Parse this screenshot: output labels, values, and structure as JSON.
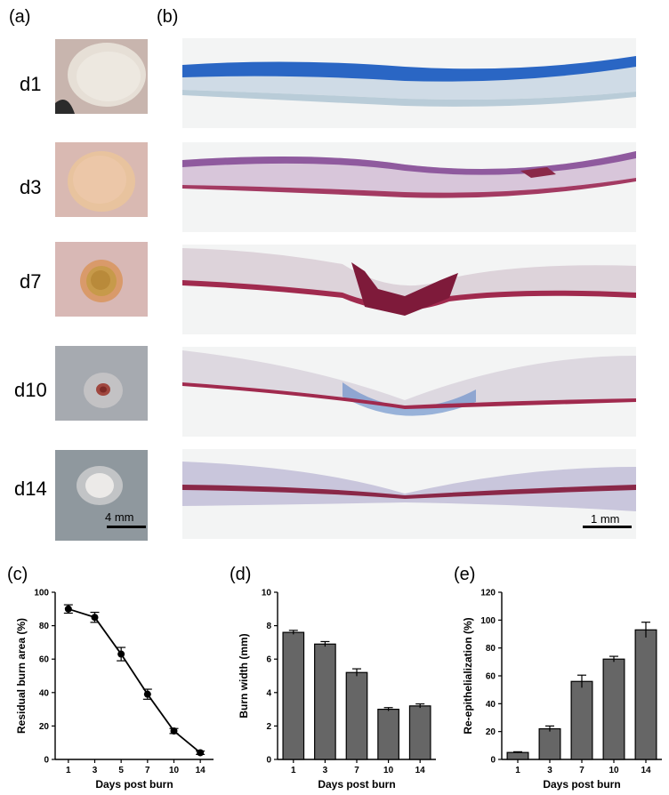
{
  "panels": {
    "a": "(a)",
    "b": "(b)",
    "c": "(c)",
    "d": "(d)",
    "e": "(e)"
  },
  "days": [
    "d1",
    "d3",
    "d7",
    "d10",
    "d14"
  ],
  "scalebars": {
    "photo": "4 mm",
    "histo": "1 mm"
  },
  "colors": {
    "bar_fill": "#666666",
    "line": "#000000"
  },
  "chart_data": [
    {
      "type": "line",
      "panel": "(c)",
      "categories": [
        "1",
        "3",
        "5",
        "7",
        "10",
        "14"
      ],
      "values": [
        90,
        85,
        63,
        39,
        17,
        4
      ],
      "errors": [
        2.5,
        3,
        4,
        3,
        1.5,
        1
      ],
      "xlabel": "Days post burn",
      "ylabel": "Residual burn area (%)",
      "ylim": [
        0,
        100
      ],
      "yticks": [
        0,
        20,
        40,
        60,
        80,
        100
      ]
    },
    {
      "type": "bar",
      "panel": "(d)",
      "categories": [
        "1",
        "3",
        "7",
        "10",
        "14"
      ],
      "values": [
        7.6,
        6.9,
        5.2,
        3.0,
        3.2
      ],
      "errors": [
        0.12,
        0.15,
        0.22,
        0.1,
        0.12
      ],
      "xlabel": "Days post burn",
      "ylabel": "Burn width (mm)",
      "ylim": [
        0,
        10
      ],
      "yticks": [
        0,
        2,
        4,
        6,
        8,
        10
      ]
    },
    {
      "type": "bar",
      "panel": "(e)",
      "categories": [
        "1",
        "3",
        "7",
        "10",
        "14"
      ],
      "values": [
        5,
        22,
        56,
        72,
        93
      ],
      "errors": [
        0.5,
        2,
        4.5,
        2,
        5.5
      ],
      "xlabel": "Days post burn",
      "ylabel": "Re-epithelialization (%)",
      "ylim": [
        0,
        120
      ],
      "yticks": [
        0,
        20,
        40,
        60,
        80,
        100,
        120
      ]
    }
  ]
}
